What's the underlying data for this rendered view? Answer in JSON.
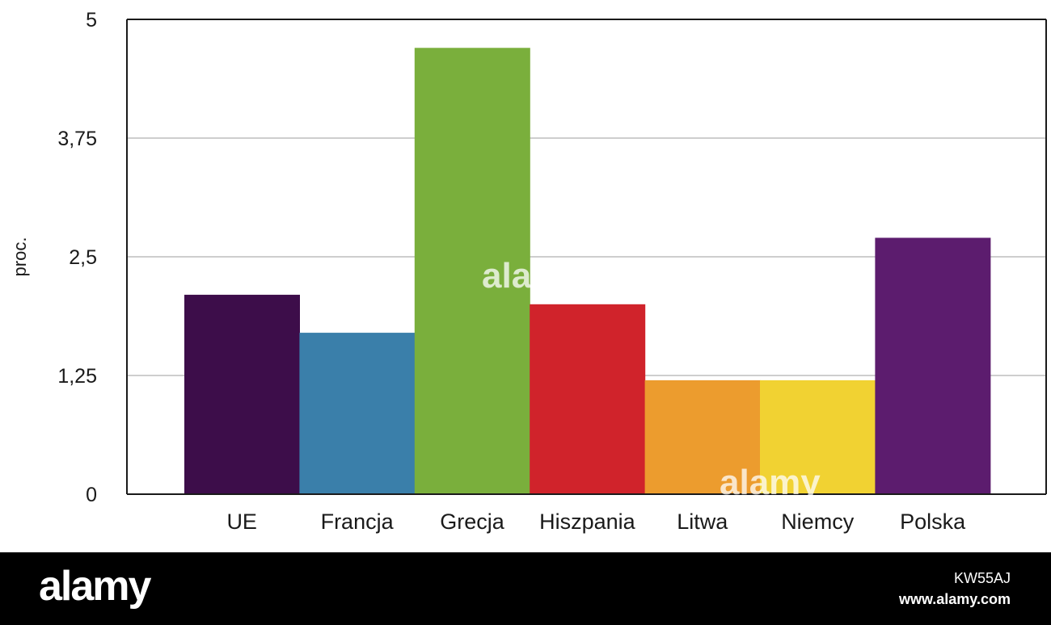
{
  "chart_data": {
    "type": "bar",
    "categories": [
      "UE",
      "Francja",
      "Grecja",
      "Hiszpania",
      "Litwa",
      "Niemcy",
      "Polska"
    ],
    "values": [
      2.1,
      1.7,
      4.7,
      2.0,
      1.2,
      1.2,
      2.7
    ],
    "colors": [
      "#3d0d4a",
      "#3a7faa",
      "#7aaf3c",
      "#d0232b",
      "#ec9c2e",
      "#f1d232",
      "#5c1c6e"
    ],
    "yticks": [
      "0",
      "1,25",
      "2,5",
      "3,75",
      "5"
    ],
    "ylabel": "proc.",
    "ylim": [
      0,
      5
    ],
    "grid": true
  },
  "watermark": {
    "logo": "alamy",
    "image_id": "KW55AJ",
    "url": "www.alamy.com"
  }
}
